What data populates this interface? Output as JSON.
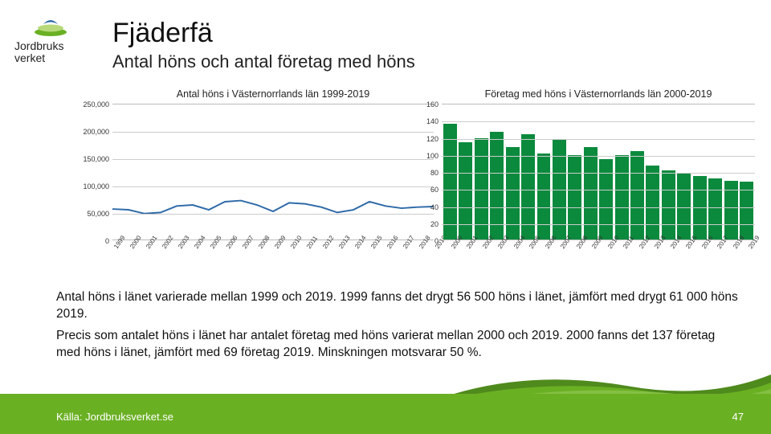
{
  "logo": {
    "line1": "Jordbruks",
    "line2": "verket"
  },
  "title": "Fjäderfä",
  "subtitle": "Antal höns och antal företag med höns",
  "paragraph1": "Antal höns i länet varierade mellan 1999 och 2019. 1999 fanns det drygt 56 500 höns i länet, jämfört med drygt 61 000 höns 2019.",
  "paragraph2": "Precis som antalet höns i länet har antalet företag med höns varierat mellan 2000 och 2019. 2000 fanns det 137 företag med höns i länet, jämfört med 69 företag 2019. Minskningen motsvarar 50 %.",
  "source": "Källa: Jordbruksverket.se",
  "page": "47",
  "accent_green": "#6ab023",
  "bar_green": "#0b8a3d",
  "line_color": "#2e6aa8",
  "chart_left": {
    "type": "line",
    "title": "Antal höns i Västernorrlands län 1999-2019",
    "ylim": [
      0,
      250000
    ],
    "ytick_step": 50000,
    "yticks": [
      "0",
      "50,000",
      "100,000",
      "150,000",
      "200,000",
      "250,000"
    ],
    "years": [
      "1999",
      "2000",
      "2001",
      "2002",
      "2003",
      "2004",
      "2005",
      "2006",
      "2007",
      "2008",
      "2009",
      "2010",
      "2011",
      "2012",
      "2013",
      "2014",
      "2015",
      "2016",
      "2017",
      "2018",
      "2019"
    ],
    "values": [
      56500,
      55000,
      48000,
      50000,
      62000,
      64000,
      55000,
      70000,
      72000,
      64000,
      52000,
      68000,
      66000,
      60000,
      50000,
      55000,
      70000,
      62000,
      58000,
      60000,
      61000
    ],
    "title_fontsize": 12.5,
    "label_fontsize": 9,
    "grid_color": "#cccccc"
  },
  "chart_right": {
    "type": "bar",
    "title": "Företag med höns i Västernorrlands län 2000-2019",
    "ylim": [
      0,
      160
    ],
    "ytick_step": 20,
    "yticks": [
      "0",
      "20",
      "40",
      "60",
      "80",
      "100",
      "120",
      "140",
      "160"
    ],
    "years": [
      "2000",
      "2001",
      "2002",
      "2003",
      "2004",
      "2005",
      "2006",
      "2007",
      "2008",
      "2009",
      "2010",
      "2011",
      "2012",
      "2013",
      "2014",
      "2015",
      "2016",
      "2017",
      "2018",
      "2019"
    ],
    "values": [
      137,
      115,
      120,
      128,
      110,
      125,
      102,
      118,
      100,
      110,
      95,
      100,
      105,
      88,
      82,
      78,
      75,
      72,
      70,
      69
    ],
    "title_fontsize": 12.5,
    "label_fontsize": 9,
    "grid_color": "#cccccc",
    "bar_color": "#0b8a3d"
  }
}
